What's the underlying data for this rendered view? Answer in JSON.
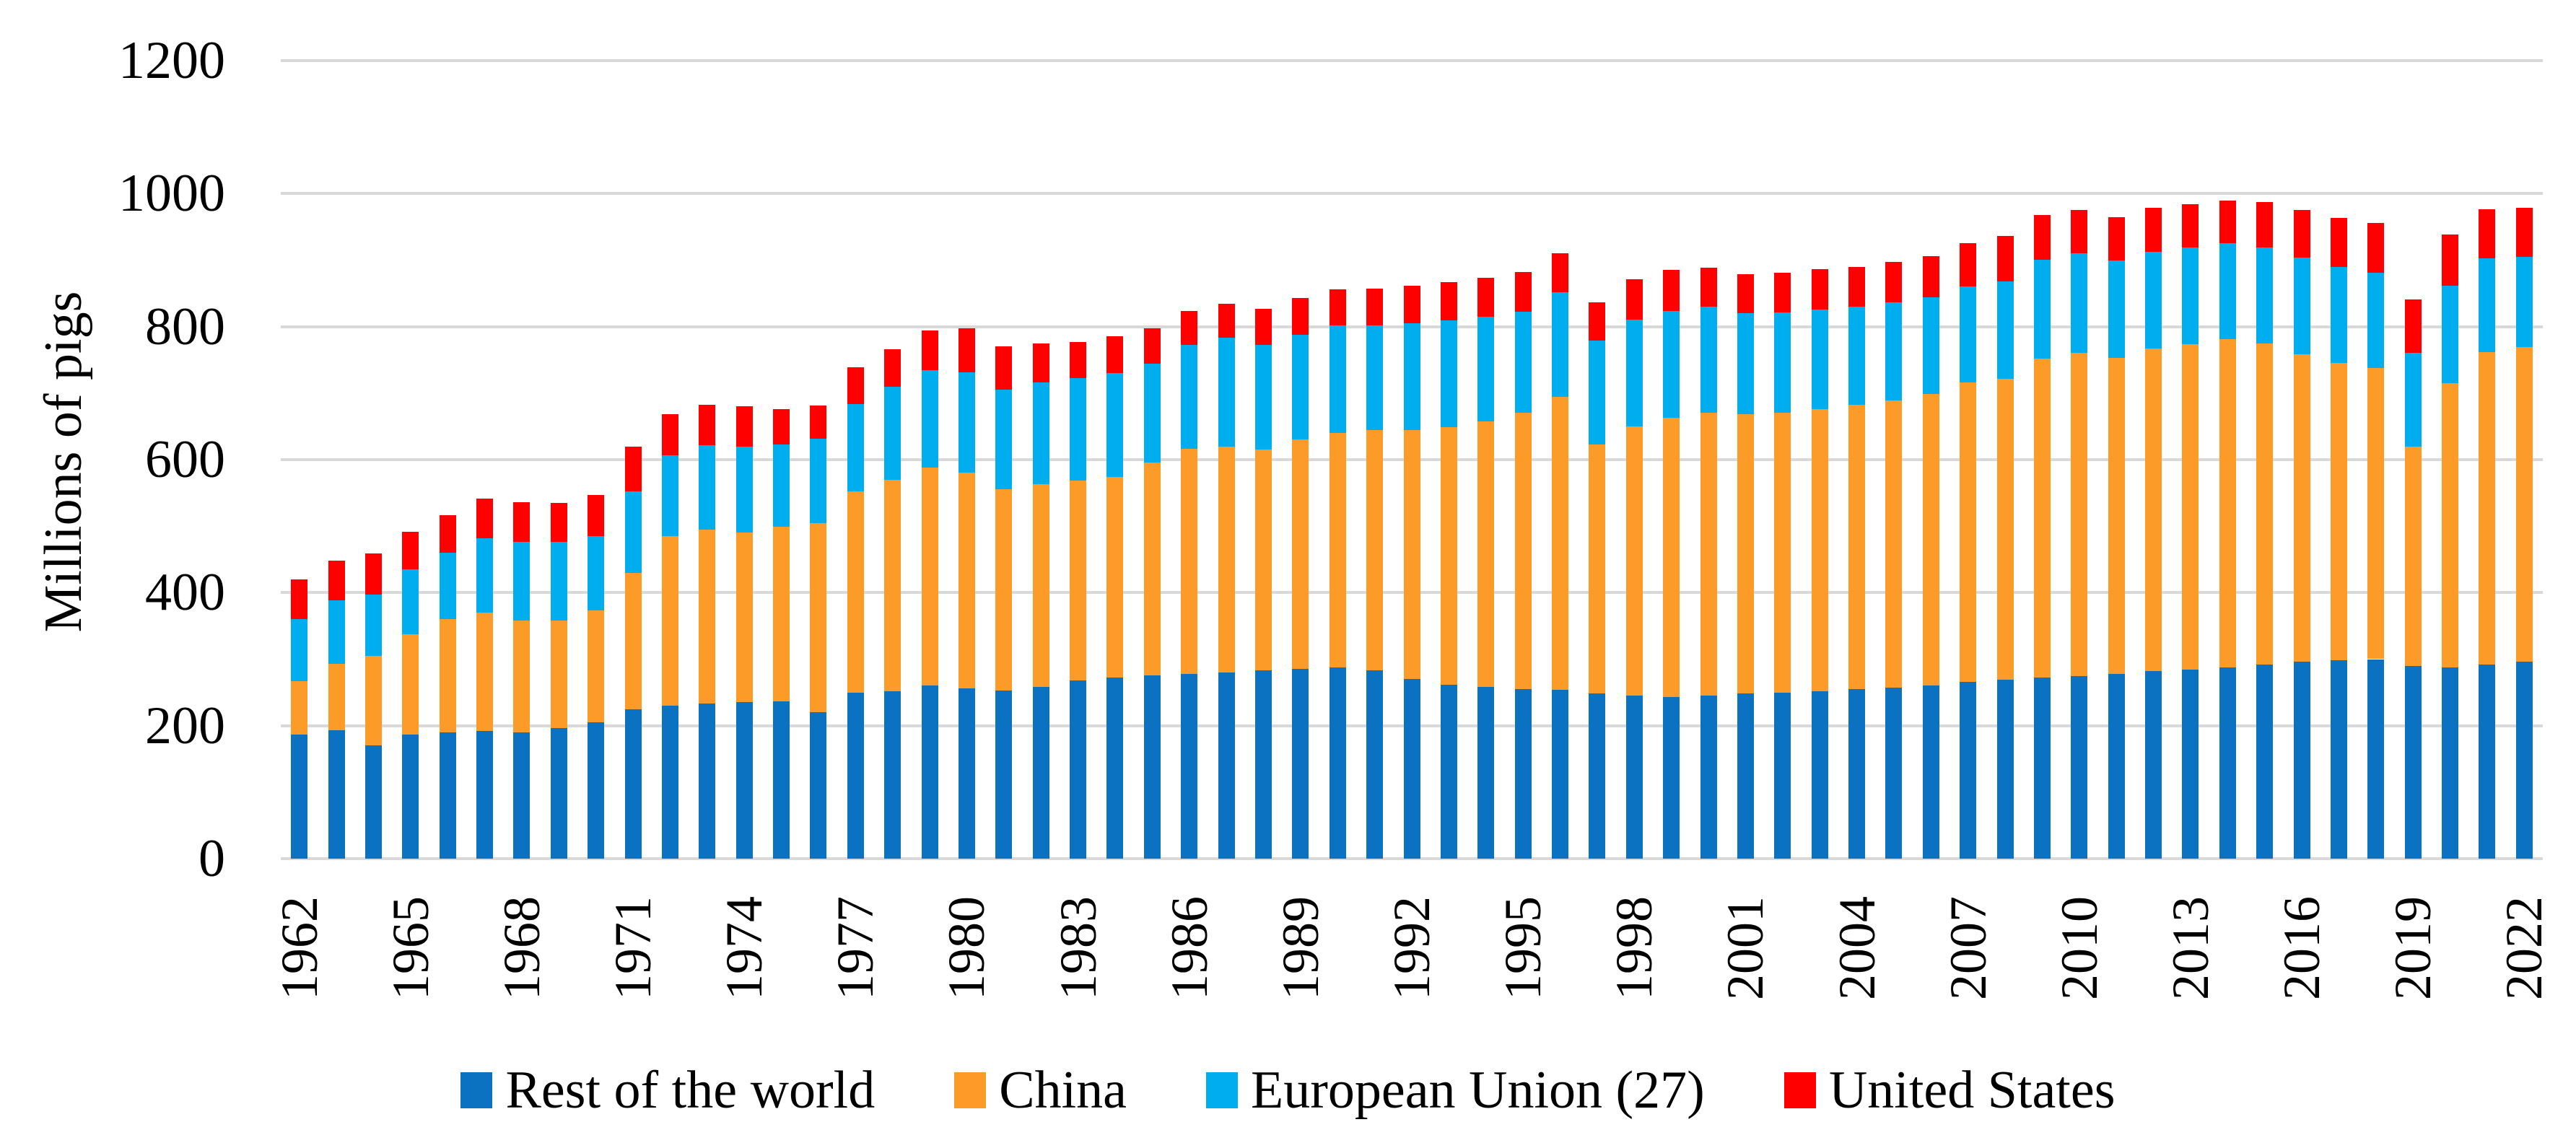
{
  "y_axis": {
    "title": "Millions of pigs",
    "ticks": [
      0,
      200,
      400,
      600,
      800,
      1000,
      1200
    ]
  },
  "x_axis": {
    "tick_years": [
      1962,
      1965,
      1968,
      1971,
      1974,
      1977,
      1980,
      1983,
      1986,
      1989,
      1992,
      1995,
      1998,
      2001,
      2004,
      2007,
      2010,
      2013,
      2016,
      2019,
      2022
    ]
  },
  "legend": {
    "items": [
      {
        "label": "Rest of the world",
        "color": "#0b71c1"
      },
      {
        "label": "China",
        "color": "#fd9b28"
      },
      {
        "label": "European Union (27)",
        "color": "#00aeef"
      },
      {
        "label": "United States",
        "color": "#ff0000"
      }
    ]
  },
  "colors": {
    "gridline": "#d9d9d9",
    "text": "#000000",
    "background": "#ffffff"
  },
  "chart_data": {
    "type": "bar",
    "stacked": true,
    "title": "",
    "xlabel": "",
    "ylabel": "Millions of pigs",
    "ylim": [
      0,
      1200
    ],
    "y_step": 200,
    "grid": true,
    "legend_position": "bottom",
    "categories": [
      1962,
      1963,
      1964,
      1965,
      1966,
      1967,
      1968,
      1969,
      1970,
      1971,
      1972,
      1973,
      1974,
      1975,
      1976,
      1977,
      1978,
      1979,
      1980,
      1981,
      1982,
      1983,
      1984,
      1985,
      1986,
      1987,
      1988,
      1989,
      1990,
      1991,
      1992,
      1993,
      1994,
      1995,
      1996,
      1997,
      1998,
      1999,
      2000,
      2001,
      2002,
      2003,
      2004,
      2005,
      2006,
      2007,
      2008,
      2009,
      2010,
      2011,
      2012,
      2013,
      2014,
      2015,
      2016,
      2017,
      2018,
      2019,
      2020,
      2021,
      2022
    ],
    "series": [
      {
        "name": "Rest of the world",
        "color": "#0b71c1",
        "values": [
          187,
          193,
          170,
          187,
          190,
          192,
          190,
          196,
          205,
          225,
          230,
          233,
          235,
          237,
          220,
          250,
          252,
          260,
          256,
          253,
          258,
          268,
          272,
          276,
          278,
          280,
          283,
          285,
          288,
          283,
          270,
          262,
          258,
          255,
          254,
          248,
          245,
          243,
          245,
          248,
          250,
          252,
          255,
          257,
          260,
          266,
          269,
          272,
          275,
          278,
          282,
          284,
          288,
          292,
          296,
          298,
          300,
          290,
          288,
          292,
          296
        ]
      },
      {
        "name": "China",
        "color": "#fd9b28",
        "values": [
          80,
          100,
          135,
          150,
          170,
          178,
          168,
          162,
          168,
          205,
          255,
          262,
          255,
          262,
          285,
          302,
          318,
          328,
          325,
          302,
          305,
          300,
          302,
          320,
          338,
          340,
          332,
          345,
          352,
          362,
          375,
          387,
          400,
          415,
          440,
          375,
          405,
          420,
          425,
          420,
          421,
          424,
          427,
          432,
          439,
          450,
          452,
          480,
          486,
          475,
          485,
          490,
          493,
          483,
          462,
          447,
          438,
          330,
          427,
          470,
          473
        ]
      },
      {
        "name": "European Union (27)",
        "color": "#00aeef",
        "values": [
          93,
          95,
          92,
          98,
          100,
          112,
          118,
          118,
          112,
          122,
          121,
          127,
          129,
          124,
          127,
          132,
          140,
          146,
          150,
          150,
          153,
          155,
          156,
          148,
          157,
          163,
          158,
          158,
          162,
          157,
          160,
          160,
          157,
          152,
          158,
          156,
          160,
          160,
          160,
          152,
          150,
          150,
          148,
          147,
          145,
          144,
          147,
          149,
          149,
          146,
          146,
          145,
          145,
          144,
          146,
          145,
          143,
          141,
          146,
          141,
          136
        ]
      },
      {
        "name": "United States",
        "color": "#ff0000",
        "values": [
          60,
          60,
          62,
          57,
          56,
          59,
          60,
          59,
          62,
          67,
          62,
          61,
          61,
          53,
          49,
          55,
          56,
          60,
          67,
          65,
          59,
          54,
          56,
          54,
          51,
          51,
          54,
          55,
          54,
          55,
          57,
          58,
          58,
          60,
          58,
          57,
          61,
          62,
          59,
          59,
          60,
          60,
          60,
          61,
          62,
          65,
          68,
          67,
          65,
          66,
          66,
          65,
          64,
          68,
          71,
          73,
          75,
          80,
          77,
          74,
          74
        ]
      }
    ]
  }
}
